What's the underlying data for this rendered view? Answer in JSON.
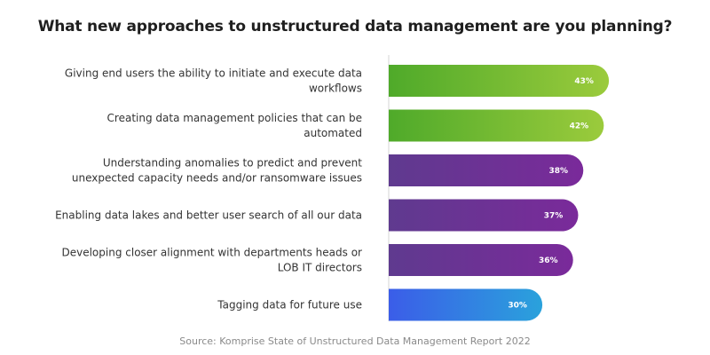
{
  "chart_data": {
    "type": "bar",
    "orientation": "horizontal",
    "title": "What new approaches to unstructured data management are you planning?",
    "source": "Source: Komprise State of Unstructured Data Management Report 2022",
    "xlim": [
      0,
      50
    ],
    "grid": false,
    "legend": "none",
    "categories": [
      [
        "Giving end users the ability to initiate and execute data",
        "workflows"
      ],
      [
        "Creating data management policies that can be",
        "automated"
      ],
      [
        "Understanding anomalies to predict and prevent",
        "unexpected capacity needs and/or ransomware issues"
      ],
      [
        "Enabling data lakes and better user search of all our data"
      ],
      [
        "Developing closer alignment with departments heads or",
        "LOB IT directors"
      ],
      [
        "Tagging data for future use"
      ]
    ],
    "values": [
      43,
      42,
      38,
      37,
      36,
      30
    ],
    "value_labels": [
      "43%",
      "42%",
      "38%",
      "37%",
      "36%",
      "30%"
    ],
    "colors": {
      "green_start": "#4faa2a",
      "green_end": "#9bcb3c",
      "purple_start": "#5f3a8f",
      "purple_end": "#7a2a9a",
      "blue_start": "#3b5de8",
      "blue_end": "#2aa2dc",
      "axis": "#d6d6d6"
    },
    "bar_color_groups": [
      "green",
      "green",
      "purple",
      "purple",
      "purple",
      "blue"
    ]
  }
}
